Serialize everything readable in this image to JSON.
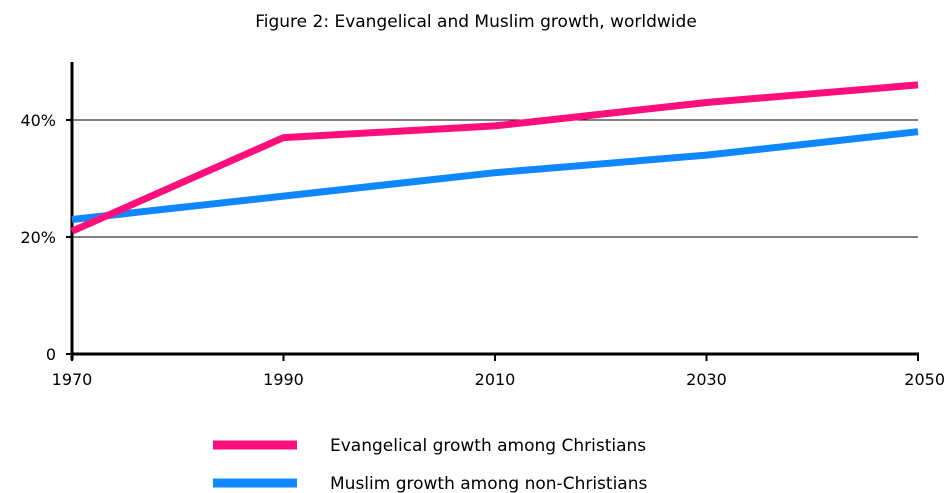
{
  "chart_data": {
    "type": "line",
    "title": "Figure 2: Evangelical and Muslim growth, worldwide",
    "xlabel": "",
    "ylabel": "",
    "x": [
      1970,
      1990,
      2010,
      2030,
      2050
    ],
    "x_tick_labels": [
      "1970",
      "1990",
      "2010",
      "2030",
      "2050"
    ],
    "xlim": [
      1970,
      2050
    ],
    "y_ticks": [
      0,
      20,
      40
    ],
    "y_tick_labels": [
      "0",
      "20%",
      "40%"
    ],
    "ylim": [
      0,
      50
    ],
    "grid": "horizontal at 20% and 40%",
    "legend_position": "bottom",
    "series": [
      {
        "name": "Evangelical growth among Christians",
        "color": "#ff0f7b",
        "values": [
          21,
          37,
          39,
          43,
          46
        ]
      },
      {
        "name": "Muslim growth among non-Christians",
        "color": "#0f87ff",
        "values": [
          23,
          27,
          31,
          34,
          38
        ]
      }
    ]
  }
}
